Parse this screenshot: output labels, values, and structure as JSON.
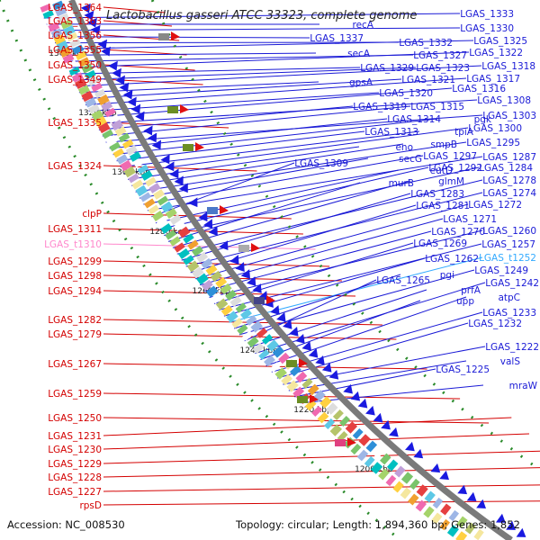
{
  "title": "Lactobacillus gasseri ATCC 33323, complete genome",
  "footer": {
    "accession": "Accession: NC_008530",
    "stats": "Topology: circular; Length: 1,894,360 bp; Genes: 1,852"
  },
  "colors": {
    "left_label": "#d40000",
    "right_label": "#1a1ad6",
    "trna_left": "#ff88cc",
    "trna_right": "#33aaff",
    "axis": "#777777",
    "tick": "#2a8a2a"
  },
  "scale": {
    "ticks": [
      "1340 kbp",
      "1320 kbp",
      "1300 kbp",
      "1280 kbp",
      "1260 kbp",
      "1240 kbp",
      "1220 kbp",
      "1200 kbp"
    ]
  },
  "left_labels": [
    "LGAS_1364",
    "LGAS_1363",
    "LGAS_1356",
    "LGAS_1355",
    "LGAS_1350",
    "LGAS_1349",
    "LGAS_1335",
    "LGAS_1324",
    "clpP",
    "LGAS_1311",
    "LGAS_t1310",
    "LGAS_1299",
    "LGAS_1298",
    "LGAS_1294",
    "LGAS_1282",
    "LGAS_1279",
    "LGAS_1267",
    "LGAS_1259",
    "LGAS_1250",
    "LGAS_1231",
    "LGAS_1230",
    "LGAS_1229",
    "LGAS_1228",
    "LGAS_1227",
    "rpsD"
  ],
  "right_labels": [
    "LGAS_1333",
    "recA",
    "LGAS_1330",
    "LGAS_1337",
    "LGAS_1332",
    "LGAS_1325",
    "secA",
    "LGAS_1327",
    "LGAS_1322",
    "LGAS_1329",
    "LGAS_1323",
    "LGAS_1318",
    "gpsA",
    "LGAS_1321",
    "LGAS_1317",
    "LGAS_1320",
    "LGAS_1316",
    "LGAS_1308",
    "LGAS_1319",
    "LGAS_1315",
    "LGAS_1303",
    "LGAS_1314",
    "pgk",
    "LGAS_1313",
    "tpiA",
    "LGAS_1300",
    "eno",
    "smpB",
    "LGAS_1295",
    "secG",
    "LGAS_1297",
    "LGAS_1287",
    "LGAS_1309",
    "eutD",
    "LGAS_1292",
    "LGAS_1284",
    "murB",
    "glmM",
    "LGAS_1278",
    "LGAS_1283",
    "LGAS_1274",
    "LGAS_1281",
    "LGAS_1272",
    "LGAS_1271",
    "LGAS_1270",
    "LGAS_1260",
    "LGAS_1269",
    "LGAS_1257",
    "LGAS_1262",
    "LGAS_t1252",
    "pgi",
    "LGAS_1249",
    "LGAS_1265",
    "prfA",
    "LGAS_1242",
    "upp",
    "atpC",
    "LGAS_1233",
    "LGAS_1232",
    "LGAS_1222",
    "valS",
    "LGAS_1225",
    "mraW"
  ]
}
